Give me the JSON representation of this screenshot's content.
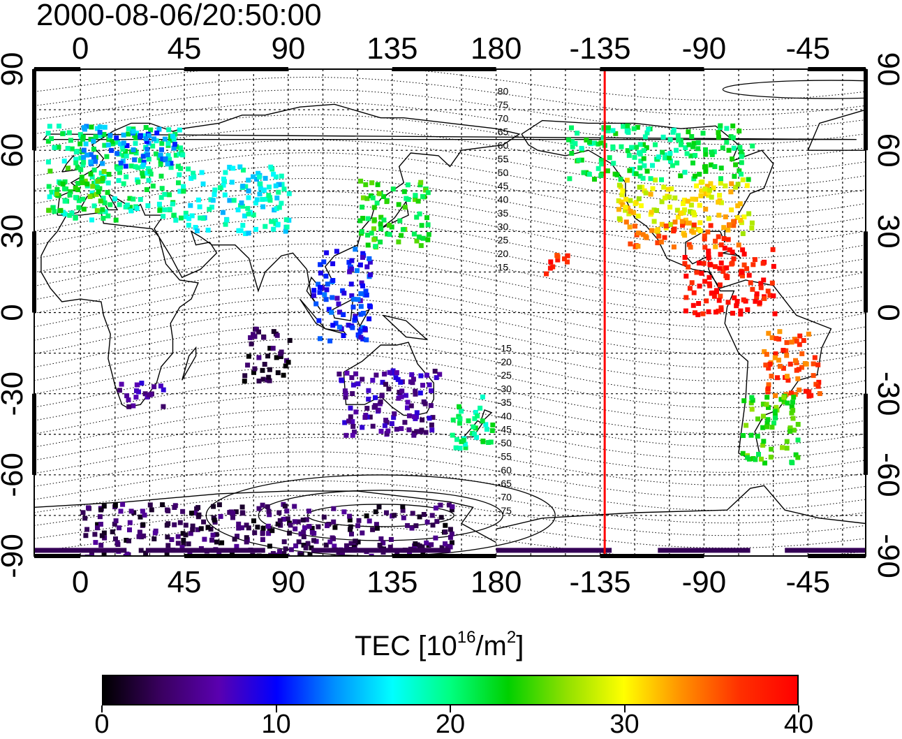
{
  "title": "2000-08-06/20:50:00",
  "top_axis": {
    "ticks": [
      "0",
      "45",
      "90",
      "135",
      "180",
      "-135",
      "-90",
      "-45"
    ]
  },
  "bottom_axis": {
    "ticks": [
      "0",
      "45",
      "90",
      "135",
      "180",
      "-135",
      "-90",
      "-45"
    ]
  },
  "left_axis": {
    "ticks": [
      "90",
      "60",
      "30",
      "0",
      "-30",
      "-60",
      "-90"
    ]
  },
  "right_axis": {
    "ticks": [
      "90",
      "60",
      "30",
      "0",
      "-30",
      "-60",
      "-90"
    ]
  },
  "contour_labels": {
    "north": [
      "80",
      "75",
      "70",
      "65",
      "60",
      "55",
      "50",
      "45",
      "40",
      "35",
      "30",
      "25",
      "20",
      "15"
    ],
    "south": [
      "-15",
      "-20",
      "-25",
      "-30",
      "-35",
      "-40",
      "-45",
      "-50",
      "-55",
      "-60",
      "-65",
      "-70",
      "-75"
    ]
  },
  "marker_line": {
    "longitude": -133,
    "color": "#ff0000"
  },
  "colorbar": {
    "title_prefix": "TEC  [10",
    "title_exp": "16",
    "title_mid": "/m",
    "title_exp2": "2",
    "title_suffix": "]",
    "min": 0,
    "max": 40,
    "tick_labels": [
      "0",
      "10",
      "20",
      "30",
      "40"
    ],
    "colors": [
      "#000000",
      "#3a0060",
      "#5a00b0",
      "#0000ff",
      "#0090ff",
      "#00ffff",
      "#00ff80",
      "#00d000",
      "#90e000",
      "#ffff00",
      "#ff9000",
      "#ff3000",
      "#ff0000"
    ]
  },
  "chart_data": {
    "type": "heatmap",
    "title": "2000-08-06/20:50:00",
    "xlabel": "",
    "ylabel": "",
    "xlim": [
      -20,
      340
    ],
    "ylim": [
      -90,
      90
    ],
    "value_label": "TEC [10^16/m^2]",
    "value_range": [
      0,
      40
    ],
    "regions": [
      {
        "name": "",
        "lon": [
          -15,
          45
        ],
        "lat": [
          35,
          70
        ],
        "tec": 20
      },
      {
        "name": "",
        "lon": [
          0,
          40
        ],
        "lat": [
          55,
          70
        ],
        "tec": 13
      },
      {
        "name": "",
        "lon": [
          -15,
          10
        ],
        "lat": [
          38,
          55
        ],
        "tec": 24
      },
      {
        "name": "",
        "lon": [
          45,
          90
        ],
        "lat": [
          30,
          55
        ],
        "tec": 17
      },
      {
        "name": "",
        "lon": [
          120,
          150
        ],
        "lat": [
          25,
          50
        ],
        "tec": 23
      },
      {
        "name": "",
        "lon": [
          100,
          125
        ],
        "lat": [
          -10,
          25
        ],
        "tec": 10
      },
      {
        "name": "",
        "lon": [
          110,
          155
        ],
        "lat": [
          -45,
          -20
        ],
        "tec": 6
      },
      {
        "name": "",
        "lon": [
          160,
          178
        ],
        "lat": [
          -50,
          -30
        ],
        "tec": 20
      },
      {
        "name": "",
        "lon": [
          200,
          210
        ],
        "lat": [
          15,
          25
        ],
        "tec": 38
      },
      {
        "name": "",
        "lon": [
          230,
          290
        ],
        "lat": [
          30,
          50
        ],
        "tec": 30
      },
      {
        "name": "",
        "lon": [
          235,
          285
        ],
        "lat": [
          25,
          35
        ],
        "tec": 35
      },
      {
        "name": "",
        "lon": [
          260,
          300
        ],
        "lat": [
          0,
          25
        ],
        "tec": 39
      },
      {
        "name": "",
        "lon": [
          295,
          320
        ],
        "lat": [
          -30,
          -5
        ],
        "tec": 36
      },
      {
        "name": "",
        "lon": [
          285,
          310
        ],
        "lat": [
          -55,
          -30
        ],
        "tec": 24
      },
      {
        "name": "",
        "lon": [
          210,
          290
        ],
        "lat": [
          50,
          70
        ],
        "tec": 21
      },
      {
        "name": "",
        "lon": [
          0,
          160
        ],
        "lat": [
          -90,
          -70
        ],
        "tec": 3
      },
      {
        "name": "",
        "lon": [
          15,
          35
        ],
        "lat": [
          -35,
          -25
        ],
        "tec": 6
      },
      {
        "name": "",
        "lon": [
          70,
          90
        ],
        "lat": [
          -25,
          -5
        ],
        "tec": 2
      }
    ]
  }
}
